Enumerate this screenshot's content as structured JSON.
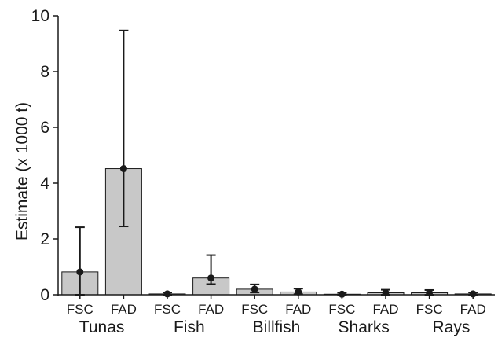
{
  "chart_data": {
    "type": "bar",
    "title": "",
    "xlabel": "",
    "ylabel": "Estimate (x 1000 t)",
    "ylim": [
      0,
      10
    ],
    "yticks": [
      0,
      2,
      4,
      6,
      8,
      10
    ],
    "grid": false,
    "groups": [
      "Tunas",
      "Fish",
      "Billfish",
      "Sharks",
      "Rays"
    ],
    "categories": [
      "FSC",
      "FAD",
      "FSC",
      "FAD",
      "FSC",
      "FAD",
      "FSC",
      "FAD",
      "FSC",
      "FAD"
    ],
    "values": [
      0.82,
      4.52,
      0.03,
      0.6,
      0.2,
      0.1,
      0.02,
      0.07,
      0.07,
      0.03
    ],
    "points": [
      0.82,
      4.52,
      0.03,
      0.6,
      0.2,
      0.1,
      0.02,
      0.07,
      0.07,
      0.03
    ],
    "error_low": [
      0.0,
      2.45,
      0.0,
      0.38,
      0.08,
      0.02,
      0.0,
      0.0,
      0.0,
      0.0
    ],
    "error_high": [
      2.42,
      9.47,
      0.08,
      1.42,
      0.37,
      0.22,
      0.07,
      0.18,
      0.17,
      0.08
    ],
    "bar_color": "#c8c8c8",
    "point_color": "#1a1a1a"
  }
}
